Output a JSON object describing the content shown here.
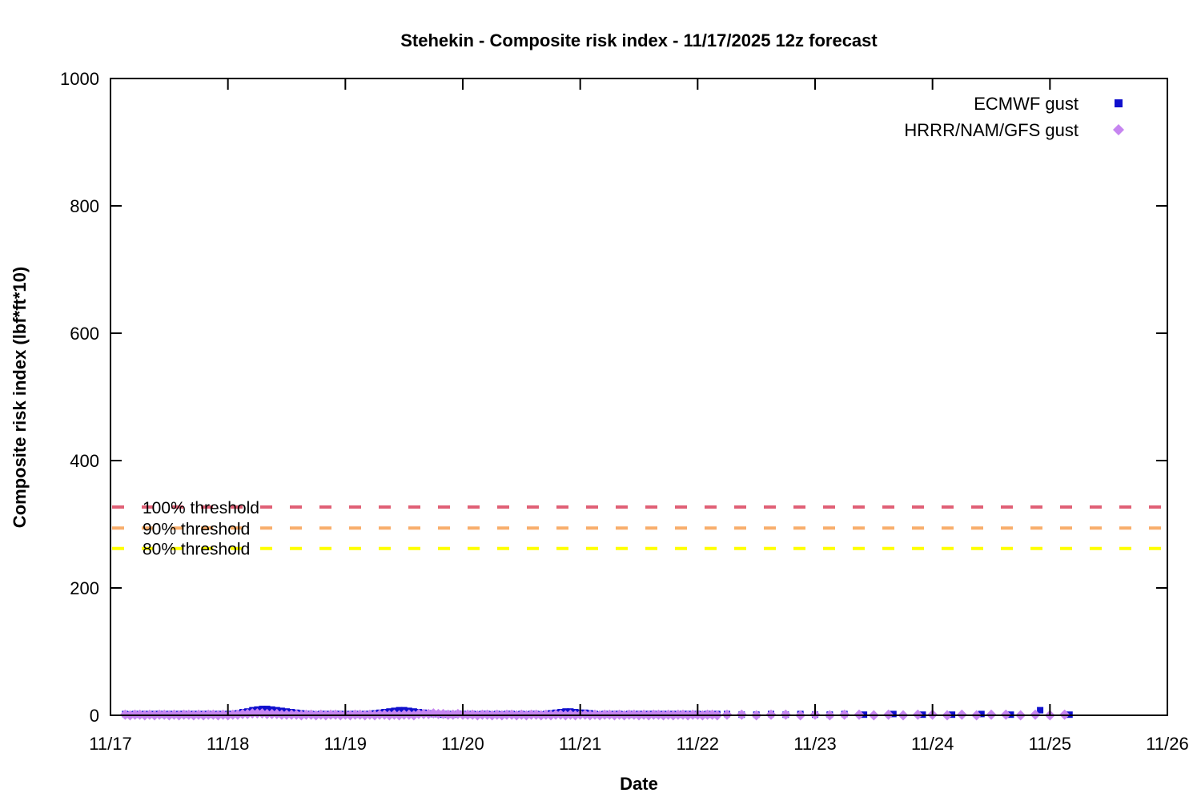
{
  "title": "Stehekin - Composite risk index - 11/17/2025 12z forecast",
  "axes": {
    "x": {
      "label": "Date",
      "ticks": [
        "11/17",
        "11/18",
        "11/19",
        "11/20",
        "11/21",
        "11/22",
        "11/23",
        "11/24",
        "11/25",
        "11/26"
      ]
    },
    "y": {
      "label": "Composite risk index (lbf*ft*10)",
      "ticks": [
        0,
        200,
        400,
        600,
        800,
        1000
      ],
      "min": 0,
      "max": 1000
    }
  },
  "legend": {
    "items": [
      {
        "label": "ECMWF gust",
        "marker": "square-icon",
        "color": "#1010cd"
      },
      {
        "label": "HRRR/NAM/GFS gust",
        "marker": "diamond-icon",
        "color": "#c685f0"
      }
    ]
  },
  "chart_data": {
    "type": "scatter",
    "title": "Stehekin - Composite risk index - 11/17/2025 12z forecast",
    "xlabel": "Date",
    "ylabel": "Composite risk index (lbf*ft*10)",
    "x_unit": "hours since 11/17/2025 00:00",
    "x_range_hours": [
      0,
      216
    ],
    "x_tick_days": [
      "11/17",
      "11/18",
      "11/19",
      "11/20",
      "11/21",
      "11/22",
      "11/23",
      "11/24",
      "11/25",
      "11/26"
    ],
    "ylim": [
      0,
      1000
    ],
    "grid": false,
    "legend_position": "top-right-inside",
    "threshold_lines": [
      {
        "label": "100% threshold",
        "value": 327,
        "color": "#e06076",
        "style": "dashed"
      },
      {
        "label": "90% threshold",
        "value": 294,
        "color": "#f8ae6c",
        "style": "dashed"
      },
      {
        "label": "80% threshold",
        "value": 262,
        "color": "#ffff00",
        "style": "dashed"
      }
    ],
    "series": [
      {
        "name": "ECMWF gust",
        "marker": "square",
        "color": "#1010cd",
        "segments": [
          {
            "start_hour": 3,
            "step_hours": 1,
            "values": [
              2,
              1,
              2,
              1,
              2,
              1,
              2,
              2,
              1,
              2,
              1,
              2,
              2,
              1,
              2,
              1,
              2,
              2,
              1,
              2,
              1,
              2,
              2,
              3,
              5,
              6,
              8,
              9,
              10,
              10,
              9,
              8,
              7,
              6,
              5,
              4,
              3,
              2,
              2,
              1,
              2,
              2,
              1,
              2,
              2,
              1,
              2,
              2,
              1,
              2,
              2,
              3,
              4,
              5,
              6,
              7,
              8,
              8,
              7,
              6,
              5,
              4,
              3,
              2,
              2,
              1,
              2,
              1,
              2,
              2,
              1,
              2,
              1,
              2,
              2,
              1,
              2,
              1,
              2,
              2,
              1,
              2,
              1,
              2,
              2,
              1,
              2,
              3,
              4,
              5,
              6,
              6,
              5,
              4,
              4,
              3,
              2,
              1,
              2,
              1,
              2,
              2,
              1,
              2,
              1,
              2,
              1,
              2,
              2,
              1,
              2,
              1,
              2,
              1,
              2,
              2,
              1,
              2,
              1,
              2,
              1,
              2
            ]
          },
          {
            "start_hour": 126,
            "step_hours": 3,
            "values": [
              2,
              1,
              1,
              2,
              1,
              2,
              1,
              1,
              2
            ]
          },
          {
            "start_hour": 154,
            "step_hours": 6,
            "values": [
              1,
              2,
              1,
              1,
              2,
              1,
              8,
              1
            ]
          }
        ]
      },
      {
        "name": "HRRR/NAM/GFS gust",
        "marker": "diamond",
        "color": "#c685f0",
        "segments": [
          {
            "start_hour": 3,
            "step_hours": 1,
            "values": [
              1,
              0,
              1,
              1,
              0,
              1,
              0,
              1,
              1,
              0,
              1,
              0,
              1,
              1,
              0,
              1,
              0,
              1,
              1,
              0,
              1,
              0,
              1,
              1,
              2,
              2,
              3,
              3,
              3,
              2,
              2,
              2,
              1,
              1,
              1,
              1,
              0,
              1,
              1,
              0,
              1,
              0,
              1,
              1,
              0,
              1,
              0,
              1,
              1,
              0,
              1,
              0,
              1,
              1,
              0,
              1,
              0,
              1,
              1,
              0,
              2,
              2,
              2,
              3,
              2,
              2,
              1,
              1,
              2,
              1,
              1,
              1,
              0,
              1,
              1,
              0,
              1,
              0,
              1,
              1,
              0,
              1,
              0,
              1,
              1,
              0,
              1,
              0,
              1,
              1,
              0,
              1,
              0,
              1,
              1,
              0,
              1,
              0,
              1,
              1,
              0,
              1,
              0,
              1,
              1,
              0,
              1,
              0,
              1,
              1,
              0,
              1,
              0,
              1,
              1,
              0,
              1,
              1,
              0,
              1,
              1,
              0
            ]
          },
          {
            "start_hour": 126,
            "step_hours": 3,
            "values": [
              1,
              1,
              0,
              1,
              1,
              0,
              1,
              0,
              1,
              1,
              0,
              1,
              0,
              1,
              1,
              0,
              1,
              0,
              1,
              1,
              0,
              1,
              0,
              1
            ]
          }
        ]
      }
    ]
  },
  "layout_colors": {
    "background": "#ffffff",
    "axis": "#000000"
  }
}
